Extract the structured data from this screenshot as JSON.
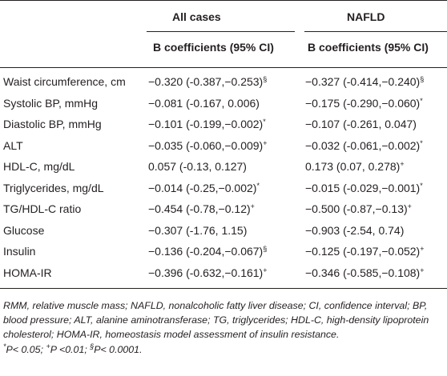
{
  "header": {
    "group1": "All cases",
    "group2": "NAFLD",
    "sub1": "B coefficients (95% CI)",
    "sub2": "B coefficients (95% CI)"
  },
  "rows": [
    {
      "label": "Waist circumference, cm",
      "all": "−0.320 (-0.387,−0.253)",
      "all_mark": "§",
      "nafld": "−0.327 (-0.414,−0.240)",
      "nafld_mark": "§"
    },
    {
      "label": "Systolic BP, mmHg",
      "all": "−0.081 (-0.167, 0.006)",
      "all_mark": "",
      "nafld": "−0.175 (-0.290,−0.060)",
      "nafld_mark": "*"
    },
    {
      "label": "Diastolic BP, mmHg",
      "all": "−0.101 (-0.199,−0.002)",
      "all_mark": "*",
      "nafld": "−0.107 (-0.261, 0.047)",
      "nafld_mark": ""
    },
    {
      "label": "ALT",
      "all": "−0.035 (-0.060,−0.009)",
      "all_mark": "+",
      "nafld": "−0.032 (-0.061,−0.002)",
      "nafld_mark": "*"
    },
    {
      "label": "HDL-C, mg/dL",
      "all": "0.057 (-0.13, 0.127)",
      "all_mark": "",
      "nafld": "0.173 (0.07, 0.278)",
      "nafld_mark": "+"
    },
    {
      "label": "Triglycerides, mg/dL",
      "all": "−0.014 (-0.25,−0.002)",
      "all_mark": "*",
      "nafld": "−0.015 (-0.029,−0.001)",
      "nafld_mark": "*"
    },
    {
      "label": "TG/HDL-C ratio",
      "all": "−0.454 (-0.78,−0.12)",
      "all_mark": "+",
      "nafld": "−0.500 (-0.87,−0.13)",
      "nafld_mark": "+"
    },
    {
      "label": "Glucose",
      "all": "−0.307 (-1.76, 1.15)",
      "all_mark": "",
      "nafld": "−0.903 (-2.54, 0.74)",
      "nafld_mark": ""
    },
    {
      "label": "Insulin",
      "all": "−0.136 (-0.204,−0.067)",
      "all_mark": "§",
      "nafld": "−0.125 (-0.197,−0.052)",
      "nafld_mark": "+"
    },
    {
      "label": "HOMA-IR",
      "all": "−0.396 (-0.632,−0.161)",
      "all_mark": "+",
      "nafld": "−0.346 (-0.585,−0.108)",
      "nafld_mark": "+"
    }
  ],
  "notes": {
    "abbrev": "RMM, relative muscle mass; NAFLD, nonalcoholic fatty liver disease; CI, confidence interval; BP, blood pressure; ALT, alanine aminotransferase; TG, triglycerides; HDL-C, high-density lipoprotein cholesterol; HOMA-IR, homeostasis model assessment of insulin resistance.",
    "sig": [
      {
        "mark": "*",
        "text": "P< 0.05; "
      },
      {
        "mark": "+",
        "text": "P <0.01; "
      },
      {
        "mark": "§",
        "text": "P< 0.0001."
      }
    ]
  }
}
